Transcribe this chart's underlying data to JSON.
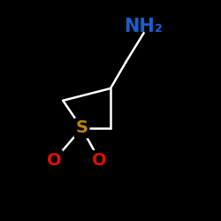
{
  "background_color": "#000000",
  "bond_color": "#ffffff",
  "S_color": "#b8860b",
  "O_color": "#dd1100",
  "N_color": "#1a5fcc",
  "label_NH2": "NH₂",
  "label_S": "S",
  "label_O": "O",
  "figsize": [
    2.5,
    2.5
  ],
  "dpi": 100,
  "bond_lw": 1.8,
  "font_size_atom": 14,
  "font_size_nh2": 15
}
